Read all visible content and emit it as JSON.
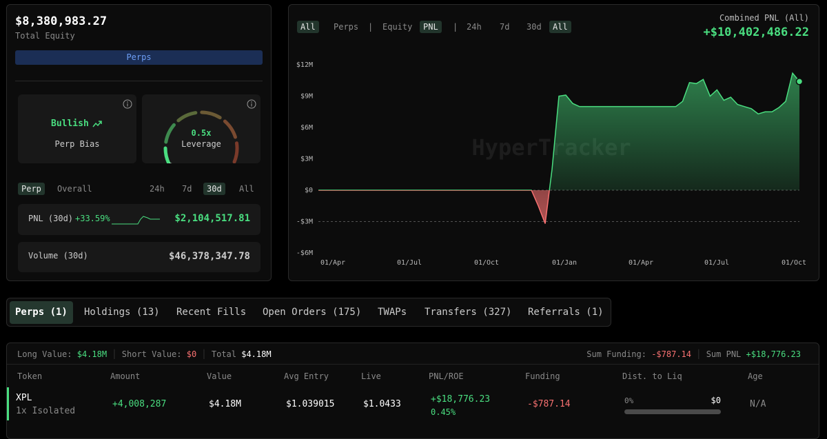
{
  "account": {
    "equity": "$8,380,983.27",
    "equity_label": "Total Equity",
    "mode_button": "Perps",
    "bias": {
      "value": "Bullish",
      "label": "Perp Bias"
    },
    "leverage": {
      "value": "0.5x",
      "label": "Leverage"
    },
    "scope_tabs": [
      "Perp",
      "Overall"
    ],
    "period_tabs": [
      "24h",
      "7d",
      "30d",
      "All"
    ],
    "pnl": {
      "label": "PNL (30d)",
      "percent": "+33.59%",
      "value": "$2,104,517.81"
    },
    "volume": {
      "label": "Volume (30d)",
      "value": "$46,378,347.78"
    }
  },
  "chart_panel": {
    "toggles": [
      "All",
      "Perps",
      "|",
      "Equity",
      "PNL",
      "|",
      "24h",
      "7d",
      "30d",
      "All"
    ],
    "combined_label": "Combined PNL (All)",
    "combined_value": "+$10,402,486.22"
  },
  "chart_data": {
    "type": "line",
    "watermark": "HyperTracker",
    "x_axis_labels": [
      "01/Apr",
      "01/Jul",
      "01/Oct",
      "01/Jan",
      "01/Apr",
      "01/Jul",
      "01/Oct"
    ],
    "values": [
      0,
      0,
      0,
      0,
      0,
      0,
      0,
      0,
      0,
      0,
      0,
      0,
      0,
      0,
      0,
      0,
      0,
      0,
      0,
      0,
      0,
      0,
      0,
      0,
      0,
      0,
      0,
      0,
      0,
      0,
      0,
      0,
      -1.5,
      -3.2,
      2,
      9.0,
      9.1,
      8.3,
      8,
      8,
      8,
      8,
      8,
      8,
      8,
      8,
      8,
      8,
      8,
      8,
      8,
      8,
      8,
      8.5,
      10.3,
      10.2,
      10.6,
      9.0,
      9.6,
      8.6,
      8.9,
      8.2,
      8.0,
      7.8,
      7.3,
      7.5,
      7.5,
      7.9,
      8.5,
      11.2,
      10.4
    ],
    "ylim": [
      -6,
      12
    ],
    "yticks": [
      {
        "value": 12,
        "label": "$12M"
      },
      {
        "value": 9,
        "label": "$9M"
      },
      {
        "value": 6,
        "label": "$6M"
      },
      {
        "value": 3,
        "label": "$3M"
      },
      {
        "value": 0,
        "label": "$0"
      },
      {
        "value": -3,
        "label": "-$3M"
      },
      {
        "value": -6,
        "label": "-$6M"
      }
    ],
    "positive_color": "#4ade80",
    "negative_color": "#f87171"
  },
  "tabs": [
    "Perps (1)",
    "Holdings (13)",
    "Recent Fills",
    "Open Orders (175)",
    "TWAPs",
    "Transfers (327)",
    "Referrals (1)"
  ],
  "positions": {
    "summary": {
      "long_label": "Long Value:",
      "long_value": "$4.18M",
      "short_label": "Short Value:",
      "short_value": "$0",
      "total_label": "Total",
      "total_value": "$4.18M",
      "funding_label": "Sum Funding:",
      "funding_value": "-$787.14",
      "pnl_label": "Sum PNL",
      "pnl_value": "+$18,776.23"
    },
    "headers": [
      "Token",
      "Amount",
      "Value",
      "Avg Entry",
      "Live",
      "PNL/ROE",
      "Funding",
      "Dist. to Liq",
      "Age"
    ],
    "row": {
      "token": "XPL",
      "margin": "1x Isolated",
      "amount": "+4,008,287",
      "value": "$4.18M",
      "avg_entry": "$1.039015",
      "live": "$1.0433",
      "pnl": "+$18,776.23",
      "roe": "0.45%",
      "funding": "-$787.14",
      "dist_pct": "0%",
      "dist_value": "$0",
      "age": "N/A"
    }
  }
}
